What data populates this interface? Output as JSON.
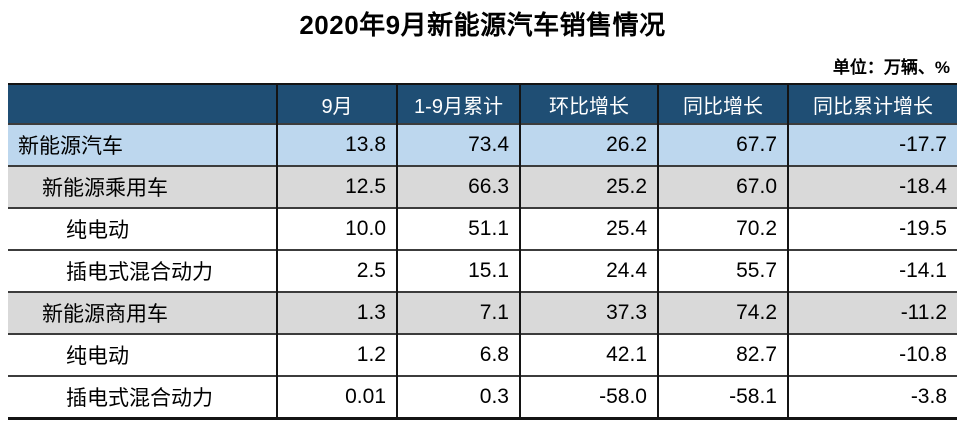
{
  "title": "2020年9月新能源汽车销售情况",
  "unit_note": "单位：万辆、%",
  "colors": {
    "header_bg": "#1F4E74",
    "header_text": "#FFFFFF",
    "row_highlight_blue": "#BDD7EE",
    "row_highlight_gray": "#D9D9D9",
    "row_white": "#FFFFFF",
    "border": "#141414"
  },
  "chart_data": {
    "type": "table",
    "title": "2020年9月新能源汽车销售情况",
    "unit": "万辆、%",
    "columns": [
      "",
      "9月",
      "1-9月累计",
      "环比增长",
      "同比增长",
      "同比累计增长"
    ],
    "rows": [
      {
        "label": "新能源汽车",
        "indent": 0,
        "bg": "blue",
        "values": [
          "13.8",
          "73.4",
          "26.2",
          "67.7",
          "-17.7"
        ]
      },
      {
        "label": "新能源乘用车",
        "indent": 1,
        "bg": "gray",
        "values": [
          "12.5",
          "66.3",
          "25.2",
          "67.0",
          "-18.4"
        ]
      },
      {
        "label": "纯电动",
        "indent": 2,
        "bg": "white",
        "values": [
          "10.0",
          "51.1",
          "25.4",
          "70.2",
          "-19.5"
        ]
      },
      {
        "label": "插电式混合动力",
        "indent": 2,
        "bg": "white",
        "values": [
          "2.5",
          "15.1",
          "24.4",
          "55.7",
          "-14.1"
        ]
      },
      {
        "label": "新能源商用车",
        "indent": 1,
        "bg": "gray",
        "values": [
          "1.3",
          "7.1",
          "37.3",
          "74.2",
          "-11.2"
        ]
      },
      {
        "label": "纯电动",
        "indent": 2,
        "bg": "white",
        "values": [
          "1.2",
          "6.8",
          "42.1",
          "82.7",
          "-10.8"
        ]
      },
      {
        "label": "插电式混合动力",
        "indent": 2,
        "bg": "white",
        "values": [
          "0.01",
          "0.3",
          "-58.0",
          "-58.1",
          "-3.8"
        ]
      }
    ]
  }
}
